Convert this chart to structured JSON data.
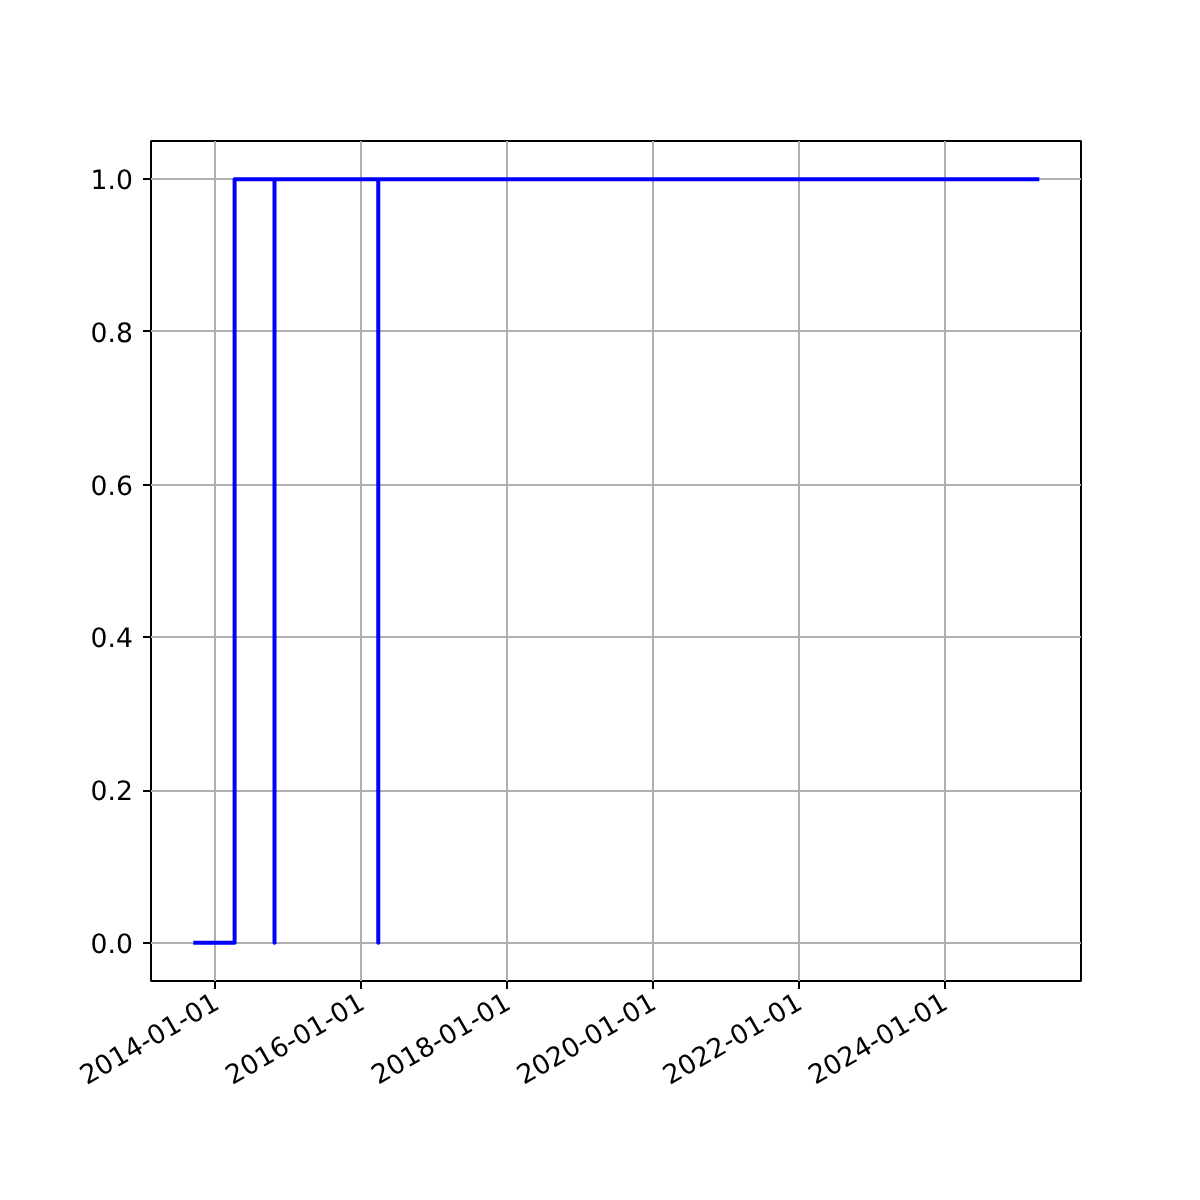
{
  "chart_data": {
    "type": "step",
    "x": [
      "2013-09-10",
      "2014-04-05",
      "2014-10-22",
      "2014-10-22",
      "2016-03-25",
      "2016-03-25",
      "2025-04-20"
    ],
    "series": [
      {
        "color": "#0000ff",
        "values": [
          0,
          1,
          0,
          1,
          0,
          1,
          1
        ]
      }
    ],
    "xlim": [
      "2013-02-10",
      "2025-11-15"
    ],
    "xticks": [
      "2014-01-01",
      "2016-01-01",
      "2018-01-01",
      "2020-01-01",
      "2022-01-01",
      "2024-01-01"
    ],
    "ylim": [
      -0.05,
      1.05
    ],
    "yticks": [
      {
        "value": 0,
        "label": "0.0"
      },
      {
        "value": 0.2,
        "label": "0.2"
      },
      {
        "value": 0.4,
        "label": "0.4"
      },
      {
        "value": 0.6,
        "label": "0.6"
      },
      {
        "value": 0.8,
        "label": "0.8"
      },
      {
        "value": 1,
        "label": "1.0"
      }
    ],
    "grid": true,
    "line_style": "solid"
  }
}
